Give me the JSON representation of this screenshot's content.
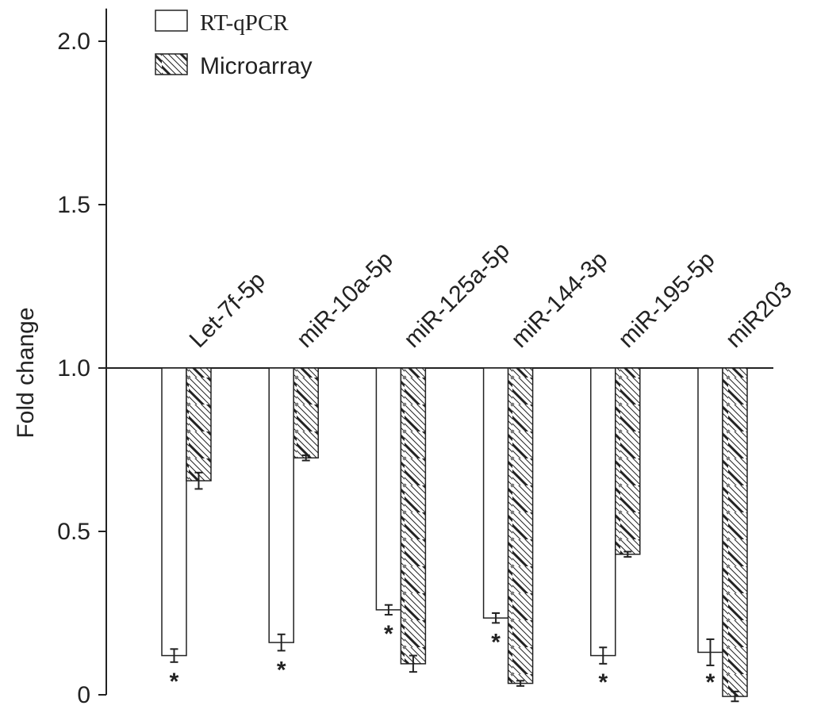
{
  "chart_data": {
    "type": "bar",
    "ylabel": "Fold change",
    "xlabel": "",
    "ylim": [
      0,
      2.1
    ],
    "yticks": [
      0,
      0.5,
      1.0,
      1.5,
      2.0
    ],
    "ytick_labels": [
      "0",
      "0.5",
      "1.0",
      "1.5",
      "2.0"
    ],
    "baseline": 1.0,
    "grid": false,
    "legend_position": "top-left",
    "categories": [
      "Let-7f-5p",
      "miR-10a-5p",
      "miR-125a-5p",
      "miR-144-3p",
      "miR-195-5p",
      "miR203"
    ],
    "series": [
      {
        "name": "RT-qPCR",
        "pattern": "open",
        "values": [
          0.12,
          0.16,
          0.26,
          0.235,
          0.12,
          0.13
        ],
        "errors": [
          0.02,
          0.025,
          0.015,
          0.015,
          0.025,
          0.04
        ]
      },
      {
        "name": "Microarray",
        "pattern": "hatched",
        "values": [
          0.655,
          0.725,
          0.095,
          0.035,
          0.43,
          -0.005
        ],
        "errors": [
          0.025,
          0.008,
          0.025,
          0.008,
          0.008,
          0.015
        ]
      }
    ],
    "significance": [
      {
        "category": "Let-7f-5p",
        "series": "RT-qPCR",
        "mark": "*"
      },
      {
        "category": "miR-10a-5p",
        "series": "RT-qPCR",
        "mark": "*"
      },
      {
        "category": "miR-125a-5p",
        "series": "RT-qPCR",
        "mark": "*"
      },
      {
        "category": "miR-144-3p",
        "series": "RT-qPCR",
        "mark": "*"
      },
      {
        "category": "miR-195-5p",
        "series": "RT-qPCR",
        "mark": "*"
      },
      {
        "category": "miR203",
        "series": "RT-qPCR",
        "mark": "*"
      }
    ],
    "colors": {
      "axis": "#222222",
      "bar_fill": "#ffffff",
      "hatch": "#222222"
    }
  }
}
